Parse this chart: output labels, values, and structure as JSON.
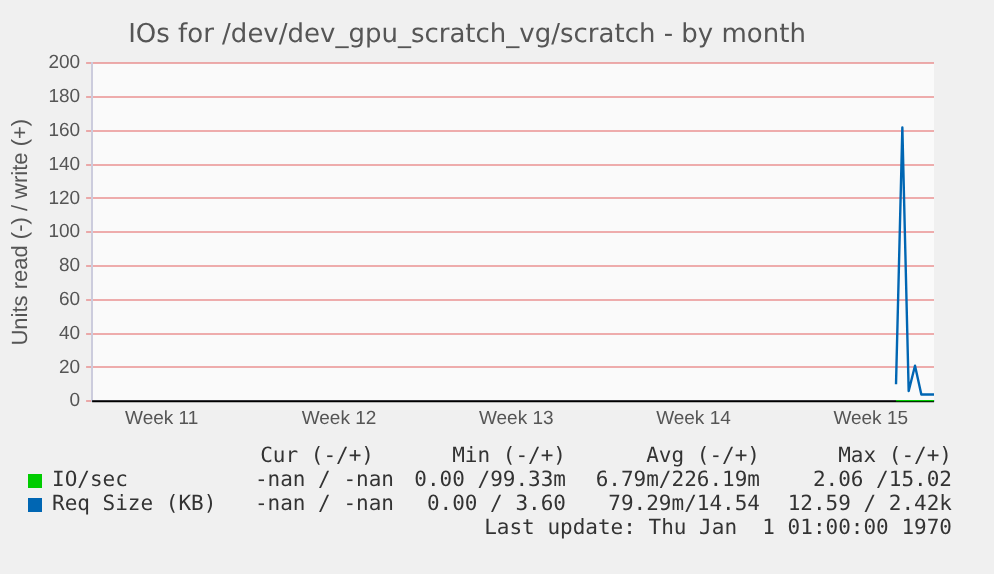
{
  "chart_data": {
    "type": "line",
    "title": "IOs for /dev/dev_gpu_scratch_vg/scratch - by month",
    "ylabel": "Units read (-) / write (+)",
    "categories": [
      null,
      null,
      null,
      null,
      null,
      null,
      null,
      null,
      null,
      null,
      null,
      "Week 11",
      null,
      null,
      null,
      null,
      null,
      null,
      null,
      null,
      null,
      null,
      null,
      null,
      null,
      null,
      null,
      null,
      null,
      null,
      null,
      null,
      null,
      null,
      null,
      null,
      null,
      null,
      null,
      "Week 12",
      null,
      null,
      null,
      null,
      null,
      null,
      null,
      null,
      null,
      null,
      null,
      null,
      null,
      null,
      null,
      null,
      null,
      null,
      null,
      null,
      null,
      null,
      null,
      null,
      null,
      null,
      null,
      "Week 13",
      null,
      null,
      null,
      null,
      null,
      null,
      null,
      null,
      null,
      null,
      null,
      null,
      null,
      null,
      null,
      null,
      null,
      null,
      null,
      null,
      null,
      null,
      null,
      null,
      null,
      null,
      null,
      "Week 14",
      null,
      null,
      null,
      null,
      null,
      null,
      null,
      null,
      null,
      null,
      null,
      null,
      null,
      null,
      null,
      null,
      null,
      null,
      null,
      null,
      null,
      null,
      null,
      null,
      null,
      null,
      null,
      "Week 15",
      null,
      null,
      null,
      null,
      null,
      null,
      null,
      null,
      null,
      null
    ],
    "ylim": [
      0,
      200
    ],
    "yticks": [
      0,
      20,
      40,
      60,
      80,
      100,
      120,
      140,
      160,
      180,
      200
    ],
    "grid": "y",
    "legend": "bottom",
    "line_style": "solid",
    "marker": "none",
    "series": [
      {
        "name": "IO/sec",
        "color": "#00cc00",
        "values": [
          null,
          null,
          null,
          null,
          null,
          null,
          null,
          null,
          null,
          null,
          null,
          null,
          null,
          null,
          null,
          null,
          null,
          null,
          null,
          null,
          null,
          null,
          null,
          null,
          null,
          null,
          null,
          null,
          null,
          null,
          null,
          null,
          null,
          null,
          null,
          null,
          null,
          null,
          null,
          null,
          null,
          null,
          null,
          null,
          null,
          null,
          null,
          null,
          null,
          null,
          null,
          null,
          null,
          null,
          null,
          null,
          null,
          null,
          null,
          null,
          null,
          null,
          null,
          null,
          null,
          null,
          null,
          null,
          null,
          null,
          null,
          null,
          null,
          null,
          null,
          null,
          null,
          null,
          null,
          null,
          null,
          null,
          null,
          null,
          null,
          null,
          null,
          null,
          null,
          null,
          null,
          null,
          null,
          null,
          null,
          null,
          null,
          null,
          null,
          null,
          null,
          null,
          null,
          null,
          null,
          null,
          null,
          null,
          null,
          null,
          null,
          null,
          null,
          null,
          null,
          null,
          null,
          null,
          null,
          null,
          null,
          null,
          null,
          null,
          null,
          null,
          null,
          0,
          0,
          0,
          0,
          0,
          0,
          0
        ]
      },
      {
        "name": "Req Size (KB)",
        "color": "#0066b3",
        "values": [
          null,
          null,
          null,
          null,
          null,
          null,
          null,
          null,
          null,
          null,
          null,
          null,
          null,
          null,
          null,
          null,
          null,
          null,
          null,
          null,
          null,
          null,
          null,
          null,
          null,
          null,
          null,
          null,
          null,
          null,
          null,
          null,
          null,
          null,
          null,
          null,
          null,
          null,
          null,
          null,
          null,
          null,
          null,
          null,
          null,
          null,
          null,
          null,
          null,
          null,
          null,
          null,
          null,
          null,
          null,
          null,
          null,
          null,
          null,
          null,
          null,
          null,
          null,
          null,
          null,
          null,
          null,
          null,
          null,
          null,
          null,
          null,
          null,
          null,
          null,
          null,
          null,
          null,
          null,
          null,
          null,
          null,
          null,
          null,
          null,
          null,
          null,
          null,
          null,
          null,
          null,
          null,
          null,
          null,
          null,
          null,
          null,
          null,
          null,
          null,
          null,
          null,
          null,
          null,
          null,
          null,
          null,
          null,
          null,
          null,
          null,
          null,
          null,
          null,
          null,
          null,
          null,
          null,
          null,
          null,
          null,
          null,
          null,
          null,
          null,
          null,
          null,
          10,
          162,
          6,
          21,
          4,
          4,
          4
        ]
      }
    ],
    "annotations": [
      "Cur (-/+)",
      "Min (-/+)",
      "Avg (-/+)",
      "Max (-/+)",
      "-nan / -nan",
      "0.00 /99.33m",
      "6.79m/226.19m",
      "2.06 /15.02",
      "-nan / -nan",
      "0.00 / 3.60",
      "79.29m/14.54",
      "12.59 / 2.42k",
      "Last update: Thu Jan  1 01:00:00 1970"
    ]
  }
}
